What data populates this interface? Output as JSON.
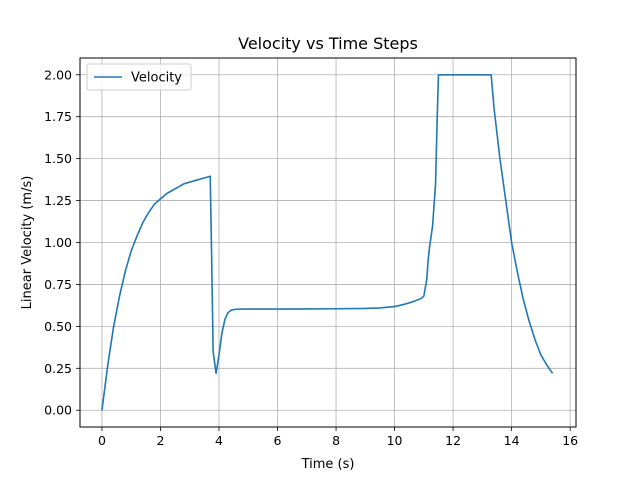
{
  "chart_data": {
    "type": "line",
    "title": "Velocity vs Time Steps",
    "xlabel": "Time (s)",
    "ylabel": "Linear Velocity (m/s)",
    "xlim": [
      -0.75,
      16.2
    ],
    "ylim": [
      -0.1,
      2.1
    ],
    "xticks": [
      0,
      2,
      4,
      6,
      8,
      10,
      12,
      14,
      16
    ],
    "yticks": [
      0.0,
      0.25,
      0.5,
      0.75,
      1.0,
      1.25,
      1.5,
      1.75,
      2.0
    ],
    "xtick_labels": [
      "0",
      "2",
      "4",
      "6",
      "8",
      "10",
      "12",
      "14",
      "16"
    ],
    "ytick_labels": [
      "0.00",
      "0.25",
      "0.50",
      "0.75",
      "1.00",
      "1.25",
      "1.50",
      "1.75",
      "2.00"
    ],
    "grid": true,
    "legend": {
      "placement": "top-left",
      "entries": [
        "Velocity"
      ]
    },
    "series": [
      {
        "name": "Velocity",
        "color": "#1f77b4",
        "x": [
          0,
          0.2,
          0.4,
          0.6,
          0.8,
          1.0,
          1.2,
          1.4,
          1.6,
          1.8,
          2.0,
          2.2,
          2.4,
          2.6,
          2.8,
          3.0,
          3.2,
          3.4,
          3.6,
          3.7,
          3.75,
          3.8,
          3.9,
          4.0,
          4.1,
          4.2,
          4.3,
          4.4,
          4.5,
          4.6,
          4.8,
          5.0,
          6.0,
          7.0,
          8.0,
          9.0,
          9.5,
          10.0,
          10.3,
          10.6,
          10.9,
          11.0,
          11.1,
          11.15,
          11.2,
          11.3,
          11.4,
          11.45,
          11.5,
          12.0,
          12.5,
          13.0,
          13.3,
          13.4,
          13.6,
          13.8,
          14.0,
          14.2,
          14.4,
          14.6,
          14.8,
          15.0,
          15.2,
          15.4
        ],
        "y": [
          0.0,
          0.27,
          0.5,
          0.68,
          0.83,
          0.95,
          1.04,
          1.12,
          1.18,
          1.23,
          1.26,
          1.29,
          1.31,
          1.33,
          1.35,
          1.36,
          1.37,
          1.38,
          1.39,
          1.395,
          0.9,
          0.35,
          0.22,
          0.33,
          0.46,
          0.54,
          0.58,
          0.595,
          0.6,
          0.602,
          0.603,
          0.603,
          0.603,
          0.604,
          0.605,
          0.607,
          0.61,
          0.618,
          0.63,
          0.645,
          0.665,
          0.68,
          0.78,
          0.9,
          0.98,
          1.1,
          1.35,
          1.7,
          2.0,
          2.0,
          2.0,
          2.0,
          2.0,
          1.8,
          1.5,
          1.25,
          1.0,
          0.82,
          0.66,
          0.53,
          0.42,
          0.33,
          0.27,
          0.22
        ]
      }
    ]
  }
}
